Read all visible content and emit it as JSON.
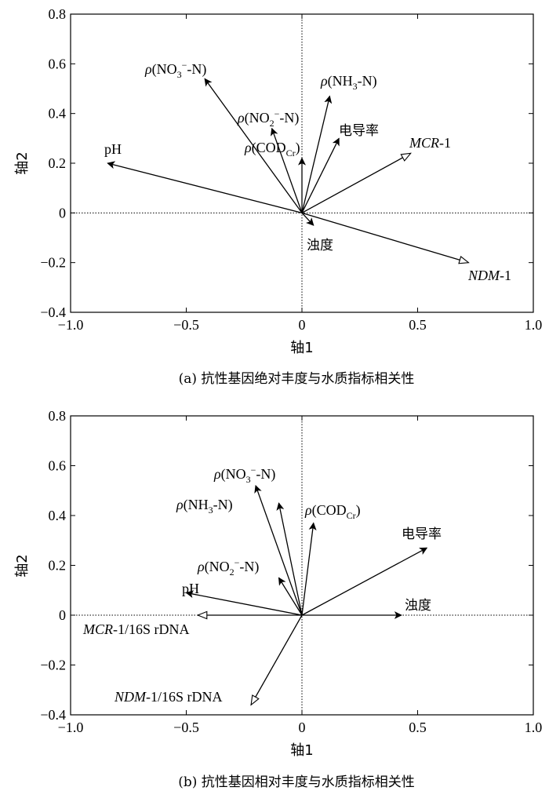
{
  "chart_data": [
    {
      "type": "vector_biplot",
      "caption": "(a)  抗性基因绝对丰度与水质指标相关性",
      "xlabel": "轴1",
      "ylabel": "轴2",
      "xlim": [
        -1.0,
        1.0
      ],
      "ylim": [
        -0.4,
        0.8
      ],
      "xticks": [
        "−1.0",
        "−0.5",
        "0",
        "0.5",
        "1.0"
      ],
      "yticks": [
        "−0.4",
        "−0.2",
        "0",
        "0.2",
        "0.4",
        "0.6",
        "0.8"
      ],
      "vectors": [
        {
          "label": "ρ(NO₃⁻-N)",
          "x": -0.42,
          "y": 0.54,
          "head": "filled"
        },
        {
          "label": "ρ(NO₂⁻-N)",
          "x": -0.13,
          "y": 0.34,
          "head": "filled"
        },
        {
          "label": "ρ(NH₃-N)",
          "x": 0.12,
          "y": 0.47,
          "head": "filled"
        },
        {
          "label": "ρ(COD꜀ᵣ)",
          "x": 0.0,
          "y": 0.22,
          "head": "filled"
        },
        {
          "label": "电导率",
          "x": 0.16,
          "y": 0.3,
          "head": "filled"
        },
        {
          "label": "MCR-1",
          "x": 0.47,
          "y": 0.24,
          "head": "open"
        },
        {
          "label": "pH",
          "x": -0.84,
          "y": 0.2,
          "head": "filled"
        },
        {
          "label": "NDM-1",
          "x": 0.72,
          "y": -0.2,
          "head": "open"
        },
        {
          "label": "浊度",
          "x": 0.05,
          "y": -0.05,
          "head": "filled"
        }
      ]
    },
    {
      "type": "vector_biplot",
      "caption": "(b)  抗性基因相对丰度与水质指标相关性",
      "xlabel": "轴1",
      "ylabel": "轴2",
      "xlim": [
        -1.0,
        1.0
      ],
      "ylim": [
        -0.4,
        0.8
      ],
      "xticks": [
        "−1.0",
        "−0.5",
        "0",
        "0.5",
        "1.0"
      ],
      "yticks": [
        "−0.4",
        "−0.2",
        "0",
        "0.2",
        "0.4",
        "0.6",
        "0.8"
      ],
      "vectors": [
        {
          "label": "ρ(NO₃⁻-N)",
          "x": -0.2,
          "y": 0.52,
          "head": "filled"
        },
        {
          "label": "ρ(NH₃-N)",
          "x": -0.1,
          "y": 0.45,
          "head": "filled"
        },
        {
          "label": "ρ(COD꜀ᵣ)",
          "x": 0.05,
          "y": 0.37,
          "head": "filled"
        },
        {
          "label": "电导率",
          "x": 0.54,
          "y": 0.27,
          "head": "filled"
        },
        {
          "label": "ρ(NO₂⁻-N)",
          "x": -0.1,
          "y": 0.15,
          "head": "filled"
        },
        {
          "label": "pH",
          "x": -0.5,
          "y": 0.09,
          "head": "filled"
        },
        {
          "label": "浊度",
          "x": 0.43,
          "y": 0.0,
          "head": "filled"
        },
        {
          "label": "MCR-1/16S rDNA",
          "x": -0.45,
          "y": 0.0,
          "head": "open"
        },
        {
          "label": "NDM-1/16S rDNA",
          "x": -0.22,
          "y": -0.36,
          "head": "open"
        }
      ]
    }
  ]
}
